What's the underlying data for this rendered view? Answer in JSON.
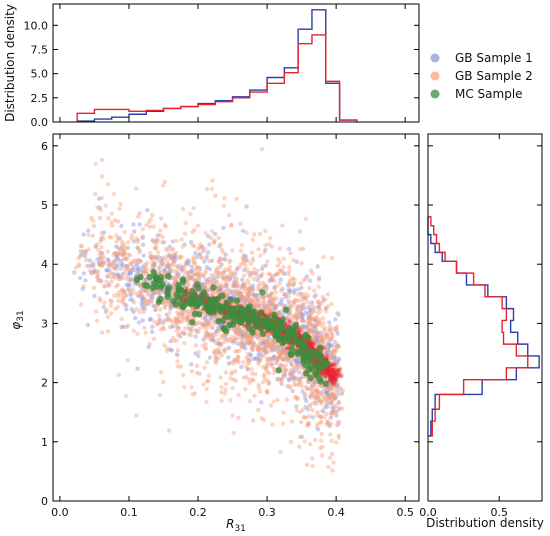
{
  "legend": [
    {
      "label": "GB Sample 1",
      "color": "#8f97dd"
    },
    {
      "label": "GB Sample 2",
      "color": "#f6a27f"
    },
    {
      "label": "MC Sample",
      "color": "#3d8c3d"
    }
  ],
  "chart_data": [
    {
      "type": "scatter",
      "xlabel_main": "R",
      "xlabel_sub": "31",
      "ylabel_main": "φ",
      "ylabel_sub": "31",
      "xlim": [
        -0.01,
        0.52
      ],
      "ylim": [
        0,
        6.2
      ],
      "xticks": [
        "0.0",
        "0.1",
        "0.2",
        "0.3",
        "0.4",
        "0.5"
      ],
      "yticks": [
        "0",
        "1",
        "2",
        "3",
        "4",
        "5",
        "6"
      ],
      "grid": false,
      "series": [
        {
          "name": "GB Sample 1",
          "color": "#8f97dd",
          "trend": [
            [
              0.02,
              4.0
            ],
            [
              0.1,
              3.8
            ],
            [
              0.2,
              3.45
            ],
            [
              0.3,
              3.0
            ],
            [
              0.35,
              2.7
            ],
            [
              0.38,
              2.3
            ],
            [
              0.4,
              2.1
            ]
          ]
        },
        {
          "name": "GB Sample 2",
          "color": "#f6a27f",
          "trend": [
            [
              0.02,
              4.2
            ],
            [
              0.1,
              3.8
            ],
            [
              0.2,
              3.4
            ],
            [
              0.3,
              3.0
            ],
            [
              0.35,
              2.7
            ],
            [
              0.38,
              2.3
            ],
            [
              0.4,
              2.1
            ]
          ]
        },
        {
          "name": "MC Sample",
          "color": "#3d8c3d",
          "trend": [
            [
              0.1,
              3.8
            ],
            [
              0.2,
              3.4
            ],
            [
              0.3,
              3.0
            ],
            [
              0.35,
              2.6
            ],
            [
              0.38,
              2.2
            ]
          ]
        }
      ]
    },
    {
      "type": "histogram",
      "ylabel": "Distribution density",
      "xlim": [
        -0.01,
        0.52
      ],
      "ylim": [
        0,
        12.2
      ],
      "yticks": [
        "0.0",
        "2.5",
        "5.0",
        "7.5",
        "10.0"
      ],
      "bin_edges": [
        0.025,
        0.05,
        0.075,
        0.1,
        0.125,
        0.15,
        0.175,
        0.2,
        0.225,
        0.25,
        0.275,
        0.3,
        0.325,
        0.345,
        0.365,
        0.385,
        0.405,
        0.43
      ],
      "series": [
        {
          "name": "GB Sample 1",
          "color": "#2a3fa8",
          "values": [
            0.1,
            0.3,
            0.5,
            0.8,
            1.1,
            1.4,
            1.6,
            1.9,
            2.2,
            2.6,
            3.3,
            4.6,
            5.6,
            9.6,
            11.6,
            4.0,
            0.2
          ]
        },
        {
          "name": "GB Sample 2",
          "color": "#e8232e",
          "values": [
            0.9,
            1.3,
            1.3,
            1.1,
            1.2,
            1.4,
            1.6,
            1.8,
            2.1,
            2.5,
            3.1,
            4.0,
            5.1,
            8.1,
            9.0,
            4.2,
            0.2
          ]
        }
      ]
    },
    {
      "type": "histogram",
      "orientation": "horizontal",
      "xlabel": "Distribution density",
      "xlim": [
        0,
        0.8
      ],
      "ylim": [
        0,
        6.2
      ],
      "xticks": [
        "0.0",
        "0.5"
      ],
      "bin_edges": [
        1.1,
        1.35,
        1.55,
        1.8,
        2.05,
        2.25,
        2.45,
        2.65,
        2.85,
        3.05,
        3.25,
        3.45,
        3.65,
        3.85,
        4.05,
        4.2,
        4.35,
        4.5,
        4.65,
        4.8
      ],
      "series": [
        {
          "name": "GB Sample 1",
          "color": "#2a3fa8",
          "values": [
            0.02,
            0.03,
            0.05,
            0.38,
            0.62,
            0.78,
            0.7,
            0.63,
            0.58,
            0.6,
            0.55,
            0.42,
            0.27,
            0.2,
            0.1,
            0.05,
            0.02,
            0.0,
            0.0
          ]
        },
        {
          "name": "GB Sample 2",
          "color": "#e8232e",
          "values": [
            0.03,
            0.05,
            0.08,
            0.25,
            0.55,
            0.7,
            0.62,
            0.53,
            0.52,
            0.55,
            0.52,
            0.4,
            0.32,
            0.2,
            0.12,
            0.08,
            0.06,
            0.04,
            0.02
          ]
        }
      ]
    }
  ]
}
